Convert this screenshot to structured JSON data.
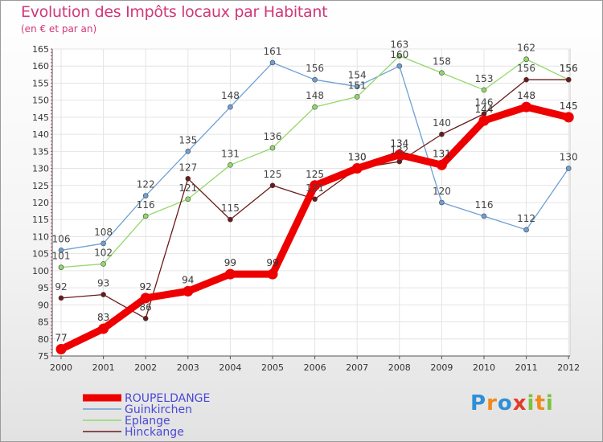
{
  "header": {
    "title": "Evolution des Impôts locaux par Habitant",
    "subtitle": "(en € et par an)"
  },
  "logo": {
    "text": "Proxiti",
    "letters": [
      "P",
      "r",
      "o",
      "x",
      "i",
      "t",
      "i"
    ],
    "colors": [
      "#2f8fd6",
      "#f08a1c",
      "#2f8fd6",
      "#e23b2a",
      "#7cc142",
      "#f08a1c",
      "#7cc142"
    ]
  },
  "chart_data": {
    "type": "line",
    "title": "Evolution des Impôts locaux par Habitant",
    "subtitle": "(en € et par an)",
    "xlabel": "",
    "ylabel": "",
    "categories": [
      "2000",
      "2001",
      "2002",
      "2003",
      "2004",
      "2005",
      "2006",
      "2007",
      "2008",
      "2009",
      "2010",
      "2011",
      "2012"
    ],
    "ylim": [
      75,
      165
    ],
    "yticks": [
      75,
      80,
      85,
      90,
      95,
      100,
      105,
      110,
      115,
      120,
      125,
      130,
      135,
      140,
      145,
      150,
      155,
      160,
      165
    ],
    "grid": true,
    "legend_position": "bottom-left",
    "series": [
      {
        "name": "ROUPELDANGE",
        "color": "#ee0000",
        "values": [
          77,
          83,
          92,
          94,
          99,
          99,
          125,
          130,
          134,
          131,
          144,
          148,
          145
        ]
      },
      {
        "name": "Guinkirchen",
        "color": "#6ea0d4",
        "values": [
          106,
          108,
          122,
          135,
          148,
          161,
          156,
          154,
          160,
          120,
          116,
          112,
          130
        ]
      },
      {
        "name": "Eplange",
        "color": "#93d86a",
        "values": [
          101,
          102,
          116,
          121,
          131,
          136,
          148,
          151,
          163,
          158,
          153,
          162,
          156
        ]
      },
      {
        "name": "Hinckange",
        "color": "#6b1a1a",
        "values": [
          92,
          93,
          86,
          127,
          115,
          125,
          121,
          130,
          132,
          140,
          146,
          156,
          156
        ]
      }
    ]
  }
}
